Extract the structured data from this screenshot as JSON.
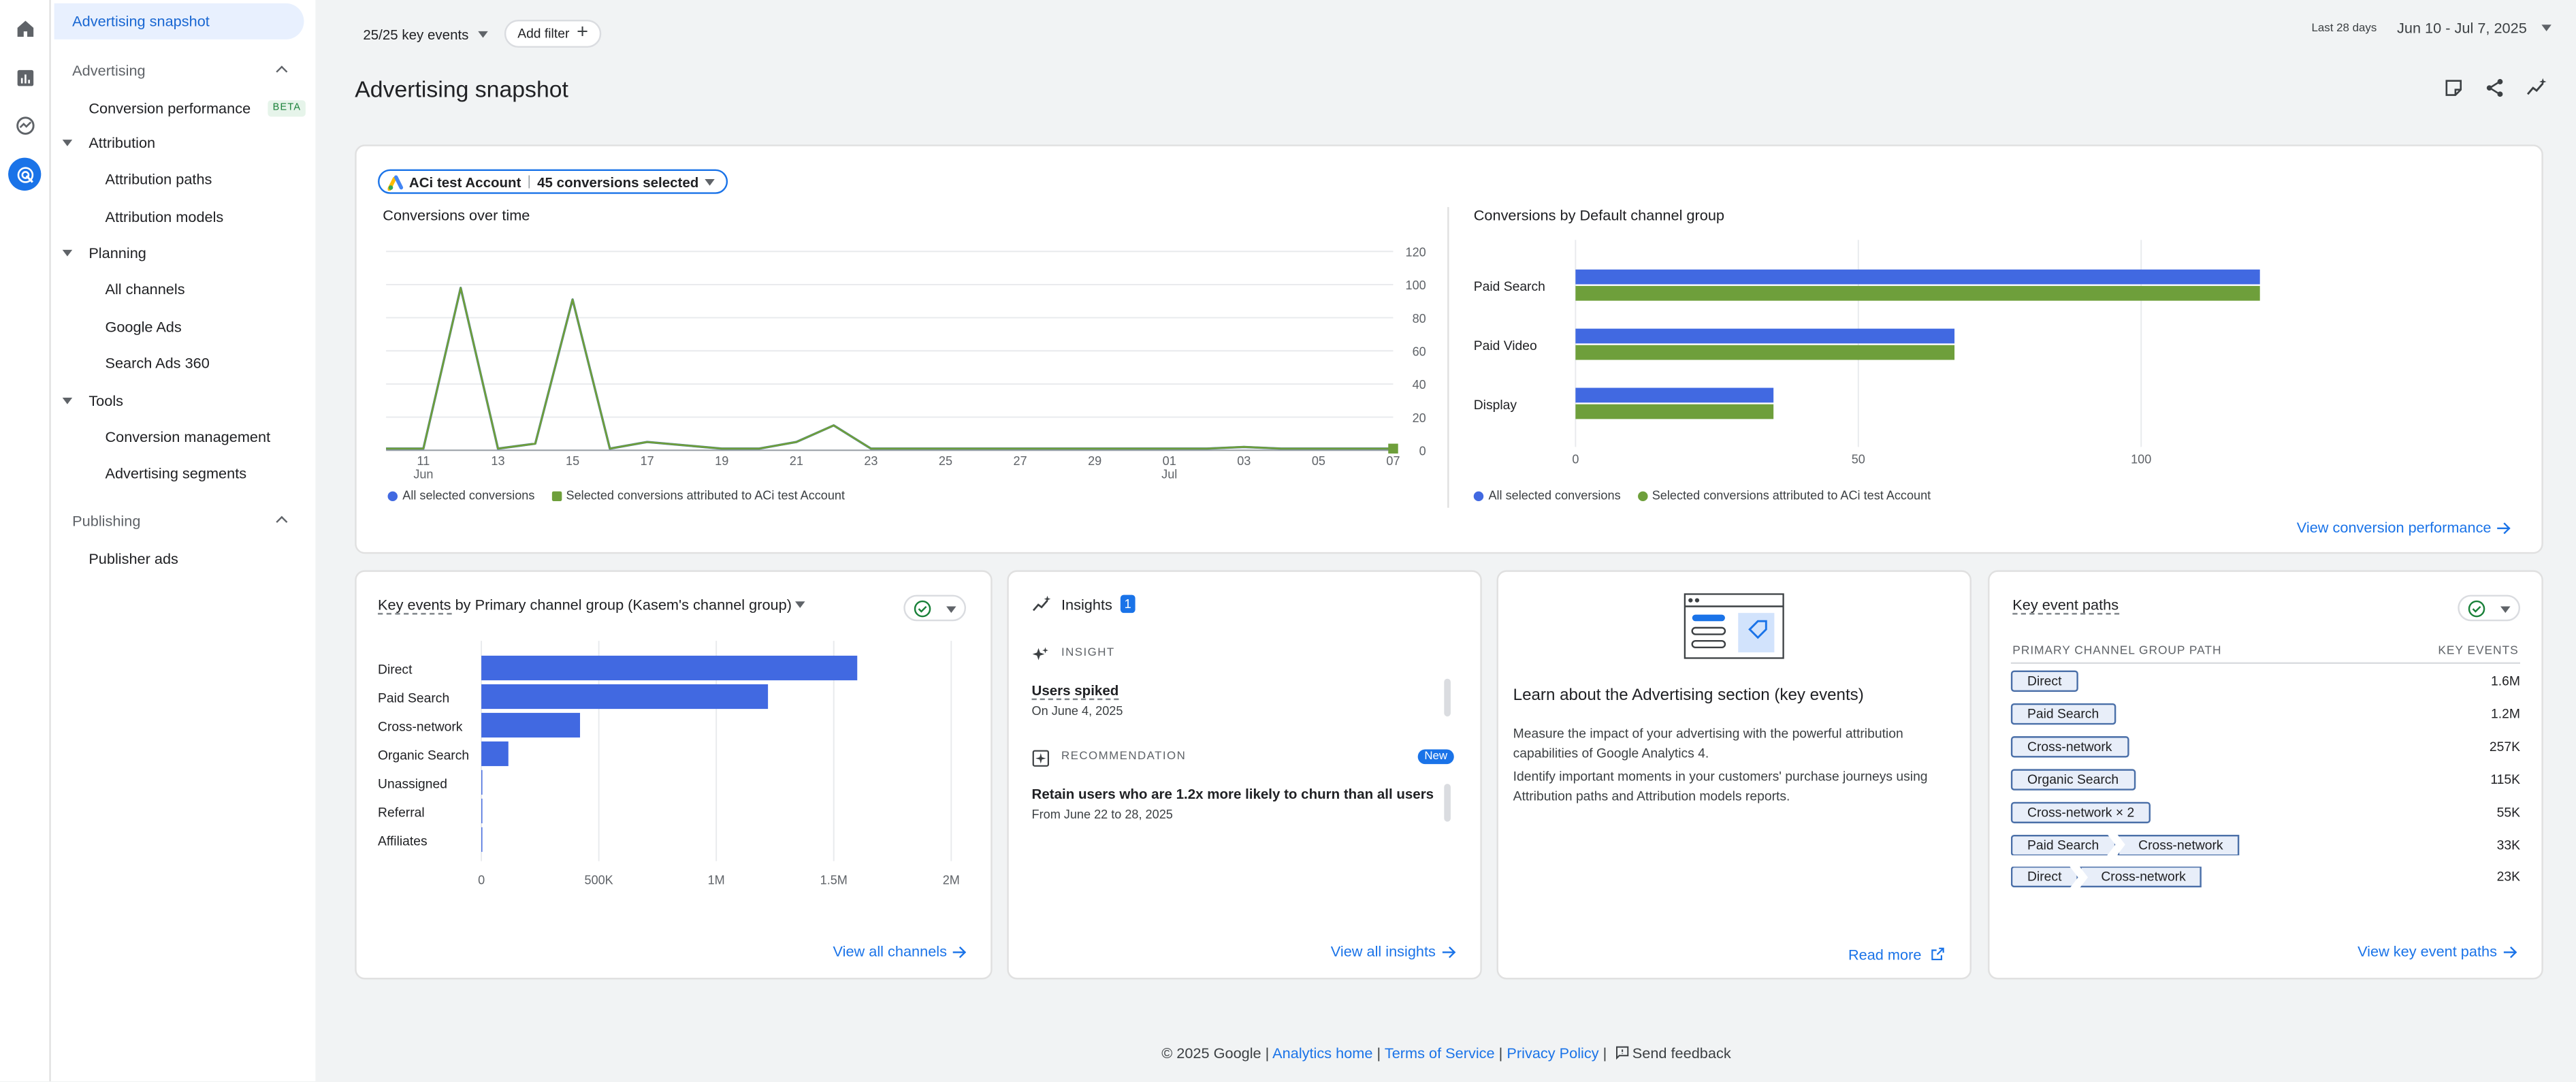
{
  "nav": {
    "active": "Advertising snapshot",
    "sections": {
      "advertising": "Advertising",
      "conversion_performance": "Conversion performance",
      "beta": "BETA",
      "attribution": "Attribution",
      "attribution_paths": "Attribution paths",
      "attribution_models": "Attribution models",
      "planning": "Planning",
      "all_channels": "All channels",
      "google_ads": "Google Ads",
      "search_ads_360": "Search Ads 360",
      "tools": "Tools",
      "conversion_management": "Conversion management",
      "advertising_segments": "Advertising segments",
      "publishing": "Publishing",
      "publisher_ads": "Publisher ads"
    }
  },
  "rail_icons": [
    "home-icon",
    "reports-icon",
    "explore-icon",
    "advertising-icon"
  ],
  "header": {
    "key_events_filter": "25/25 key events",
    "add_filter": "Add filter",
    "date_range_label": "Last 28 days",
    "date_range": "Jun 10 - Jul 7, 2025",
    "page_title": "Advertising snapshot"
  },
  "account_selector": {
    "account": "ACi test Account",
    "conversions": "45 conversions selected"
  },
  "line_chart": {
    "title": "Conversions over time",
    "legend_all": "All selected conversions",
    "legend_selected": "Selected conversions attributed to ACi test Account"
  },
  "bar_chart": {
    "title": "Conversions by Default channel group",
    "legend_all": "All selected conversions",
    "legend_selected": "Selected conversions attributed to ACi test Account"
  },
  "view_conversion_performance": "View conversion performance",
  "key_events_card": {
    "title_prefix": "Key events",
    "title_by": "by",
    "title_dimension": "Primary channel group (Kasem's channel group)",
    "view_all": "View all channels"
  },
  "insights_card": {
    "title": "Insights",
    "count": "1",
    "insight_label": "INSIGHT",
    "insight_title": "Users spiked",
    "insight_date": "On June 4, 2025",
    "recommendation_label": "RECOMMENDATION",
    "new_badge": "New",
    "recommendation_title": "Retain users who are 1.2x more likely to churn than all users",
    "recommendation_date": "From June 22 to 28, 2025",
    "view_all": "View all insights"
  },
  "learn_card": {
    "title": "Learn about the Advertising section (key events)",
    "p1": "Measure the impact of your advertising with the powerful attribution capabilities of Google Analytics 4.",
    "p2": "Identify important moments in your customers' purchase journeys using Attribution paths and Attribution models reports.",
    "read_more": "Read more"
  },
  "paths_card": {
    "title": "Key event paths",
    "col_path": "PRIMARY CHANNEL GROUP PATH",
    "col_events": "KEY EVENTS",
    "rows": [
      {
        "steps": [
          "Direct"
        ],
        "value": "1.6M"
      },
      {
        "steps": [
          "Paid Search"
        ],
        "value": "1.2M"
      },
      {
        "steps": [
          "Cross-network"
        ],
        "value": "257K"
      },
      {
        "steps": [
          "Organic Search"
        ],
        "value": "115K"
      },
      {
        "steps": [
          "Cross-network × 2"
        ],
        "value": "55K"
      },
      {
        "steps": [
          "Paid Search",
          "Cross-network"
        ],
        "value": "33K"
      },
      {
        "steps": [
          "Direct",
          "Cross-network"
        ],
        "value": "23K"
      }
    ],
    "view_all": "View key event paths"
  },
  "footer": {
    "copyright": "© 2025 Google |",
    "analytics_home": "Analytics home",
    "sep1": "|",
    "terms": "Terms of Service",
    "sep2": "|",
    "privacy": "Privacy Policy",
    "sep3": "|",
    "feedback": "Send feedback"
  },
  "colors": {
    "blue": "#4169e1",
    "green": "#6e9f3b",
    "accent": "#1a73e8"
  },
  "chart_data": [
    {
      "type": "line",
      "title": "Conversions over time",
      "x": [
        "Jun 10",
        "Jun 11",
        "Jun 12",
        "Jun 13",
        "Jun 14",
        "Jun 15",
        "Jun 16",
        "Jun 17",
        "Jun 18",
        "Jun 19",
        "Jun 20",
        "Jun 21",
        "Jun 22",
        "Jun 23",
        "Jun 24",
        "Jun 25",
        "Jun 26",
        "Jun 27",
        "Jun 28",
        "Jun 29",
        "Jun 30",
        "Jul 1",
        "Jul 2",
        "Jul 3",
        "Jul 4",
        "Jul 5",
        "Jul 6",
        "Jul 7"
      ],
      "x_tick_labels": [
        "11",
        "13",
        "15",
        "17",
        "19",
        "21",
        "23",
        "25",
        "27",
        "29",
        "01",
        "03",
        "05",
        "07"
      ],
      "x_tick_sublabels": {
        "11": "Jun",
        "01": "Jul"
      },
      "y_ticks": [
        "0",
        "20",
        "40",
        "60",
        "80",
        "100",
        "120"
      ],
      "ylim": [
        0,
        120
      ],
      "series": [
        {
          "name": "Selected conversions attributed to ACi test Account",
          "color": "#6e9f3b",
          "values": [
            1,
            1,
            98,
            1,
            4,
            91,
            1,
            5,
            3,
            1,
            1,
            5,
            15,
            1,
            1,
            1,
            1,
            1,
            1,
            1,
            1,
            1,
            1,
            2,
            1,
            1,
            1,
            1
          ]
        },
        {
          "name": "All selected conversions",
          "color": "#4169e1",
          "values": [
            1,
            1,
            98,
            1,
            4,
            91,
            1,
            5,
            3,
            1,
            1,
            5,
            15,
            1,
            1,
            1,
            1,
            1,
            1,
            1,
            1,
            1,
            1,
            2,
            1,
            1,
            1,
            1
          ]
        }
      ]
    },
    {
      "type": "bar",
      "title": "Conversions by Default channel group",
      "categories": [
        "Paid Search",
        "Paid Video",
        "Display"
      ],
      "x_ticks": [
        "0",
        "50",
        "100"
      ],
      "xlim": [
        0,
        140
      ],
      "series": [
        {
          "name": "All selected conversions",
          "color": "#4169e1",
          "values": [
            121,
            67,
            35
          ]
        },
        {
          "name": "Selected conversions attributed to ACi test Account",
          "color": "#6e9f3b",
          "values": [
            121,
            67,
            35
          ]
        }
      ]
    },
    {
      "type": "bar",
      "title": "Key events by Primary channel group (Kasem's channel group)",
      "categories": [
        "Direct",
        "Paid Search",
        "Cross-network",
        "Organic Search",
        "Unassigned",
        "Referral",
        "Affiliates"
      ],
      "x_ticks": [
        "0",
        "500K",
        "1M",
        "1.5M",
        "2M"
      ],
      "xlim": [
        0,
        2000000
      ],
      "series": [
        {
          "name": "Key events",
          "color": "#4169e1",
          "values": [
            1600000,
            1220000,
            420000,
            115000,
            3000,
            2000,
            1000
          ]
        }
      ]
    }
  ]
}
